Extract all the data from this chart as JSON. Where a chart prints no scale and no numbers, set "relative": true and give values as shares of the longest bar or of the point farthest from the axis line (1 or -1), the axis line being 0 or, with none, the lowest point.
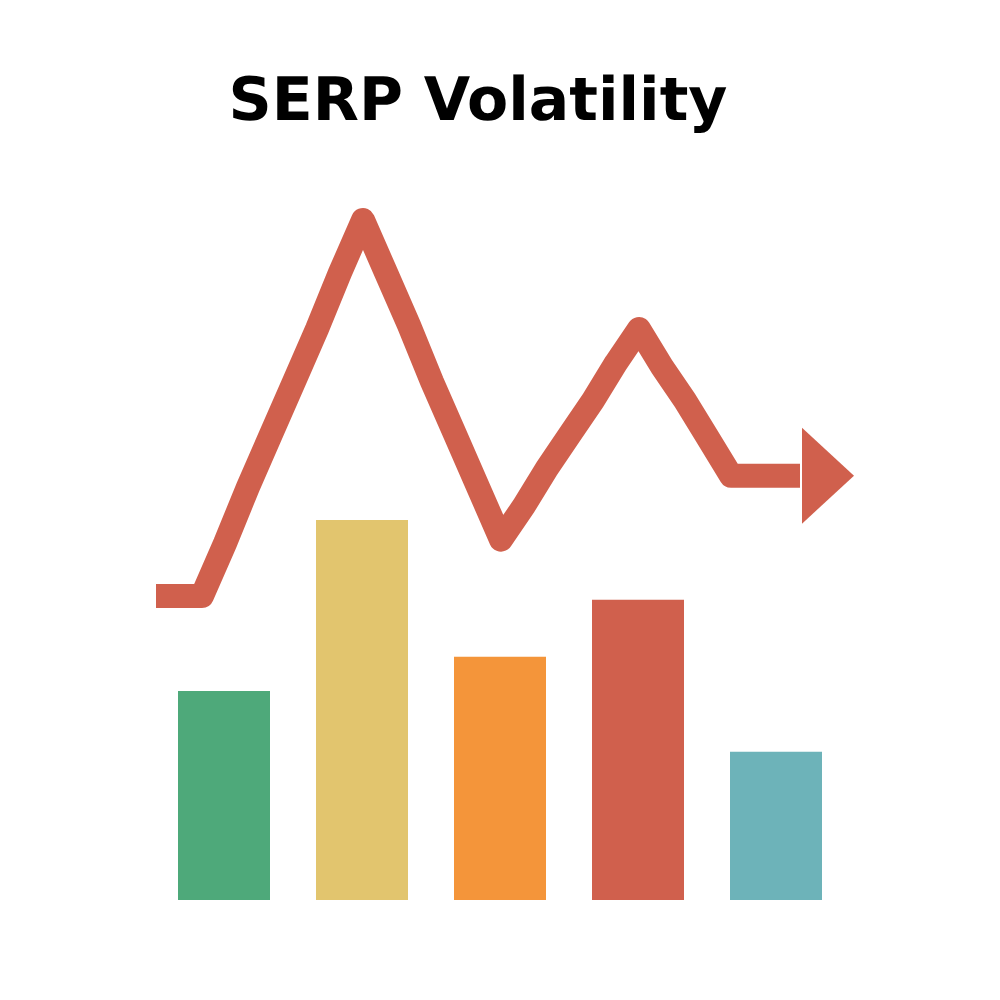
{
  "chart_data": [
    {
      "type": "line",
      "title": "SERP Volatility",
      "relative": true,
      "color": "#d0604d",
      "categories": [
        null,
        null,
        null,
        null,
        null,
        null,
        null,
        null,
        null,
        null,
        null,
        null,
        null,
        null,
        null,
        null,
        null,
        null,
        null,
        null,
        null,
        null,
        null,
        null,
        null,
        null,
        null,
        null,
        null
      ],
      "values": [
        0,
        0,
        0,
        0.14,
        0.29,
        0.43,
        0.57,
        0.71,
        0.86,
        1,
        0.86,
        0.72,
        0.57,
        0.43,
        0.29,
        0.15,
        0.24,
        0.34,
        0.43,
        0.52,
        0.62,
        0.71,
        0.61,
        0.52,
        0.42,
        0.32,
        0.32,
        0.32,
        0.32
      ]
    },
    {
      "type": "bar",
      "relative": true,
      "categories": [
        null,
        null,
        null,
        null,
        null
      ],
      "values": [
        0.55,
        1,
        0.64,
        0.79,
        0.39
      ],
      "colors": [
        "#4ea97a",
        "#e2c56e",
        "#f4953a",
        "#d0604d",
        "#6db3b9"
      ]
    }
  ]
}
